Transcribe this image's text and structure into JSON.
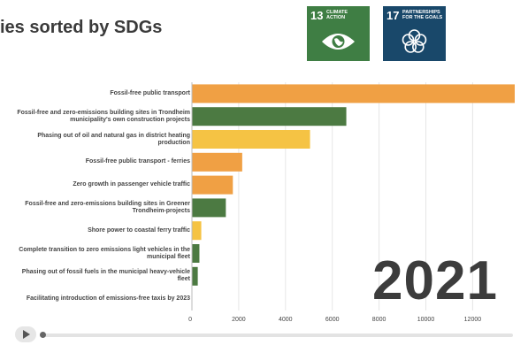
{
  "page": {
    "title": "ies sorted by SDGs",
    "year": "2021"
  },
  "sdg_badges": [
    {
      "number": "13",
      "name_line1": "CLIMATE",
      "name_line2": "ACTION",
      "color": "#3f7e44",
      "icon": "eye-globe-icon"
    },
    {
      "number": "17",
      "name_line1": "PARTNERSHIPS",
      "name_line2": "FOR THE GOALS",
      "color": "#19486a",
      "icon": "interlocking-rings-icon"
    }
  ],
  "chart_data": {
    "type": "bar",
    "orientation": "horizontal",
    "categories": [
      [
        "Fossil-free public transport"
      ],
      [
        "Fossil-free and zero-emissions building sites in Trondheim",
        "municipality's own construction projects"
      ],
      [
        "Phasing out of oil and natural gas in district heating",
        "production"
      ],
      [
        "Fossil-free public transport - ferries"
      ],
      [
        "Zero growth in passenger vehicle traffic"
      ],
      [
        "Fossil-free and zero-emissions building sites in Greener",
        "Trondheim-projects"
      ],
      [
        "Shore power to coastal ferry traffic"
      ],
      [
        "Complete transition to zero emissions light vehicles in the",
        "municipal fleet"
      ],
      [
        "Phasing out of fossil fuels in the municipal heavy-vehicle",
        "fleet"
      ],
      [
        "Facilitating introduction of emissions-free taxis by 2023"
      ]
    ],
    "values": [
      13800,
      6600,
      5050,
      2150,
      1750,
      1450,
      400,
      320,
      250,
      0
    ],
    "bar_colors": [
      "#f0a044",
      "#4c7a42",
      "#f5c344",
      "#f0a044",
      "#f0a044",
      "#4c7a42",
      "#f5c344",
      "#4c7a42",
      "#4c7a42",
      "#4c7a42"
    ],
    "xlim": [
      0,
      13800
    ],
    "xticks": [
      "0",
      "2000",
      "4000",
      "6000",
      "8000",
      "10000",
      "12000"
    ],
    "grid": true,
    "legend": "none"
  }
}
